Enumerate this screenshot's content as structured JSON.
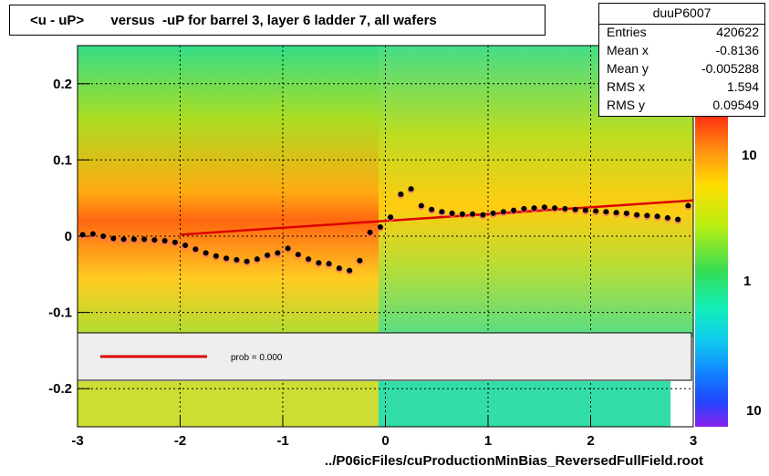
{
  "title": "<u - uP>       versus  -uP for barrel 3, layer 6 ladder 7, all wafers",
  "stats": {
    "name": "duuP6007",
    "rows": [
      {
        "key": "Entries",
        "value": "420622"
      },
      {
        "key": "Mean x",
        "value": "-0.8136"
      },
      {
        "key": "Mean y",
        "value": "-0.005288"
      },
      {
        "key": "RMS x",
        "value": "1.594"
      },
      {
        "key": "RMS y",
        "value": "0.09549"
      }
    ]
  },
  "fit_legend": {
    "label": "prob = 0.000",
    "color": "#dd0000"
  },
  "xlabel": "../P06icFiles/cuProductionMinBias_ReversedFullField.root",
  "chart_data": {
    "type": "scatter",
    "title": "<u - uP>       versus  -uP for barrel 3, layer 6 ladder 7, all wafers",
    "xlabel": "../P06icFiles/cuProductionMinBias_ReversedFullField.root",
    "ylabel": "",
    "xlim": [
      -3,
      3
    ],
    "ylim": [
      -0.25,
      0.25
    ],
    "x_ticks": [
      -3,
      -2,
      -1,
      0,
      1,
      2,
      3
    ],
    "y_ticks": [
      -0.2,
      -0.1,
      0,
      0.1,
      0.2
    ],
    "y_tick_labels": [
      "-0.2",
      "-0.1",
      "0",
      "0.1",
      "0.2"
    ],
    "x_tick_labels": [
      "-3",
      "-2",
      "-1",
      "0",
      "1",
      "2",
      "3"
    ],
    "colorbar_labels": [
      "10",
      "1",
      "10"
    ],
    "grid": true,
    "fit_line": {
      "x": [
        -2.0,
        3.0
      ],
      "y": [
        0.002,
        0.047
      ],
      "color": "#dd0000"
    },
    "series": [
      {
        "name": "",
        "marker": "black-dot",
        "x": [
          -2.95,
          -2.85,
          -2.75,
          -2.65,
          -2.55,
          -2.45,
          -2.35,
          -2.25,
          -2.15,
          -2.05,
          -1.95,
          -1.85,
          -1.75,
          -1.65,
          -1.55,
          -1.45,
          -1.35,
          -1.25,
          -1.15,
          -1.05,
          -0.95,
          -0.85,
          -0.75,
          -0.65,
          -0.55,
          -0.45,
          -0.35,
          -0.25,
          -0.15,
          -0.05,
          0.05,
          0.15,
          0.25,
          0.35,
          0.45,
          0.55,
          0.65,
          0.75,
          0.85,
          0.95,
          1.05,
          1.15,
          1.25,
          1.35,
          1.45,
          1.55,
          1.65,
          1.75,
          1.85,
          1.95,
          2.05,
          2.15,
          2.25,
          2.35,
          2.45,
          2.55,
          2.65,
          2.75,
          2.85,
          2.95
        ],
        "y": [
          0.002,
          0.003,
          0.0,
          -0.003,
          -0.004,
          -0.004,
          -0.004,
          -0.005,
          -0.006,
          -0.008,
          -0.012,
          -0.017,
          -0.022,
          -0.026,
          -0.029,
          -0.031,
          -0.033,
          -0.03,
          -0.025,
          -0.022,
          -0.016,
          -0.024,
          -0.03,
          -0.035,
          -0.036,
          -0.042,
          -0.045,
          -0.032,
          0.005,
          0.012,
          0.025,
          0.055,
          0.062,
          0.04,
          0.035,
          0.032,
          0.03,
          0.029,
          0.029,
          0.028,
          0.03,
          0.032,
          0.034,
          0.036,
          0.037,
          0.038,
          0.037,
          0.036,
          0.035,
          0.034,
          0.033,
          0.032,
          0.031,
          0.03,
          0.028,
          0.027,
          0.026,
          0.024,
          0.022,
          0.04
        ]
      }
    ]
  }
}
